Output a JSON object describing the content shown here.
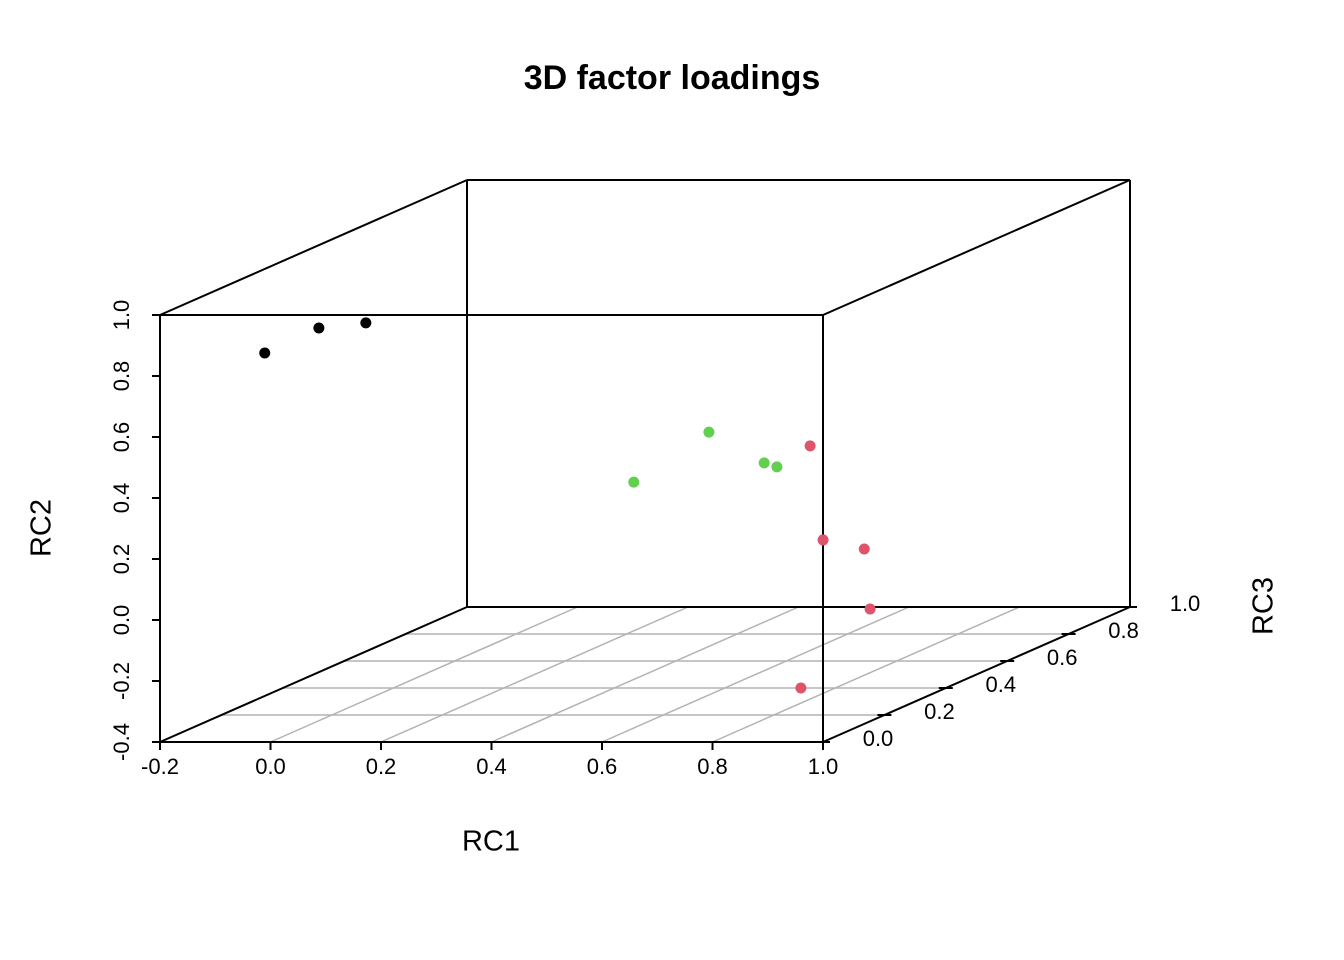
{
  "chart_data": {
    "type": "scatter3d",
    "title": "3D factor loadings",
    "x_label": "RC1",
    "y_label": "RC2",
    "z_label": "RC3",
    "xlim": [
      -0.2,
      1.0
    ],
    "ylim": [
      -0.4,
      1.0
    ],
    "zlim": [
      0,
      1.0
    ],
    "xticks": [
      -0.2,
      {
        "value": 0,
        "label": "0.0"
      },
      0.2,
      0.4,
      0.6,
      0.8,
      {
        "value": 1,
        "label": "1.0"
      }
    ],
    "yticks": [
      -0.4,
      -0.2,
      {
        "value": 0,
        "label": "0.0"
      },
      0.2,
      0.4,
      0.6,
      0.8,
      {
        "value": 1,
        "label": "1.0"
      }
    ],
    "zticks": [
      {
        "value": 0,
        "label": "0.0"
      },
      0.2,
      0.4,
      0.6,
      0.8,
      {
        "value": 1,
        "label": "1.0"
      }
    ],
    "grid": true,
    "series": [
      {
        "color": "#000000",
        "x": [
          -0.066,
          0.032,
          0.117
        ],
        "y": [
          0.831,
          0.913,
          0.93
        ],
        "z": [
          0.1,
          0.1,
          0.1
        ]
      },
      {
        "color": "#61D04F",
        "x": [
          0.213,
          0.349,
          0.449,
          0.472
        ],
        "y": [
          0.098,
          0.262,
          0.161,
          0.148
        ],
        "z": [
          0.8,
          0.8,
          0.8,
          0.8
        ]
      },
      {
        "color": "#DF536B",
        "x": [
          0.81,
          0.889,
          0.908,
          0.863,
          0.96
        ],
        "y": [
          0.438,
          0.174,
          0.1,
          -0.141,
          -0.223
        ],
        "z": [
          0.3,
          0.2,
          0.3,
          0.4,
          0
        ]
      }
    ]
  }
}
